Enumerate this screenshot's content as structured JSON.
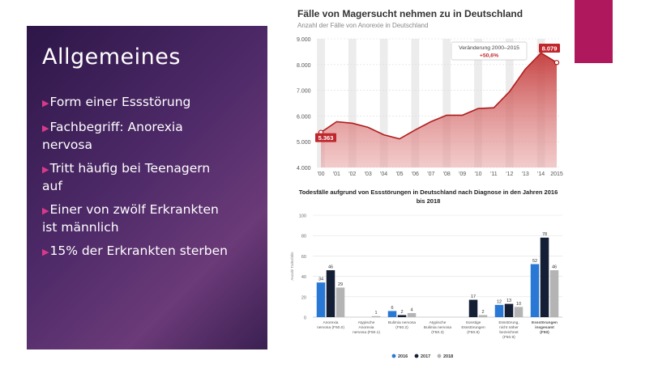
{
  "slide": {
    "title": "Allgemeines",
    "bullets": [
      "Form einer Essstörung",
      "Fachbegriff: Anorexia nervosa",
      "Tritt häufig bei Teenagern auf",
      "Einer von zwölf Erkrankten ist männlich",
      "15% der Erkrankten sterben"
    ],
    "colors": {
      "panel": "#3d2058",
      "accent": "#b0185e",
      "bullet_arrow": "#d83a8a"
    },
    "bullet_icon": "triangle-right-icon"
  },
  "chart_data": [
    {
      "type": "area",
      "title": "Fälle von Magersucht nehmen zu in Deutschland",
      "subtitle": "Anzahl der Fälle von Anorexie in Deutschland",
      "categories": [
        "'00",
        "'01",
        "'02",
        "'03",
        "'04",
        "'05",
        "'06",
        "'07",
        "'08",
        "'09",
        "'10",
        "'11",
        "'12",
        "'13",
        "'14",
        "2015"
      ],
      "series": [
        {
          "values": [
            5363,
            5780,
            5720,
            5560,
            5270,
            5110,
            5460,
            5780,
            6030,
            6030,
            6290,
            6320,
            6950,
            7820,
            8450,
            8079
          ]
        }
      ],
      "ylim": [
        4000,
        9000
      ],
      "yticks": [
        "4.000",
        "5.000",
        "6.000",
        "7.000",
        "8.000",
        "9.000"
      ],
      "labels": {
        "first": "5.363",
        "last": "8.079"
      },
      "annotation": {
        "line1": "Veränderung 2000–2015",
        "line2": "+50,6%"
      },
      "colors": {
        "line": "#b01c1c",
        "fill": "#e8a0a0",
        "label_bg": "#c0272d"
      },
      "grid": true
    },
    {
      "type": "bar",
      "title": "Todesfälle aufgrund von Essstörungen in Deutschland nach Diagnose in den Jahren 2016 bis 2018",
      "ylabel": "Anzahl Todesfälle",
      "ylim": [
        0,
        100
      ],
      "yticks": [
        "0",
        "20",
        "40",
        "60",
        "80",
        "100"
      ],
      "categories": [
        {
          "lines": [
            "Anorexia",
            "nervosa (F50.0)"
          ]
        },
        {
          "lines": [
            "Atypische",
            "Anorexia",
            "nervosa (F50.1)"
          ]
        },
        {
          "lines": [
            "Bulimia nervosa",
            "(F50.2)"
          ]
        },
        {
          "lines": [
            "Atypische",
            "Bulimia nervosa",
            "(F50.3)"
          ]
        },
        {
          "lines": [
            "Sonstige",
            "Essstörungen",
            "(F50.8)"
          ]
        },
        {
          "lines": [
            "Essstörung,",
            "nicht näher",
            "bezeichnet",
            "(F50.9)"
          ]
        },
        {
          "lines": [
            "Essstörungen",
            "insgesamt",
            "(F50)"
          ]
        }
      ],
      "series": [
        {
          "name": "2016",
          "color": "#2a78d6",
          "values": [
            34,
            null,
            6,
            null,
            null,
            12,
            52
          ]
        },
        {
          "name": "2017",
          "color": "#141e35",
          "values": [
            46,
            null,
            2,
            null,
            17,
            13,
            78
          ]
        },
        {
          "name": "2018",
          "color": "#b4b4b4",
          "values": [
            29,
            1,
            4,
            null,
            2,
            10,
            46
          ]
        }
      ],
      "value_labels": [
        [
          "34",
          "46",
          "29"
        ],
        [
          "",
          "",
          "1"
        ],
        [
          "6",
          "2",
          "4"
        ],
        [
          "",
          "",
          ""
        ],
        [
          "",
          "17",
          "2"
        ],
        [
          "12",
          "13",
          "10"
        ],
        [
          "52",
          "78",
          "46"
        ]
      ],
      "legend": "bottom",
      "grid": true
    }
  ]
}
